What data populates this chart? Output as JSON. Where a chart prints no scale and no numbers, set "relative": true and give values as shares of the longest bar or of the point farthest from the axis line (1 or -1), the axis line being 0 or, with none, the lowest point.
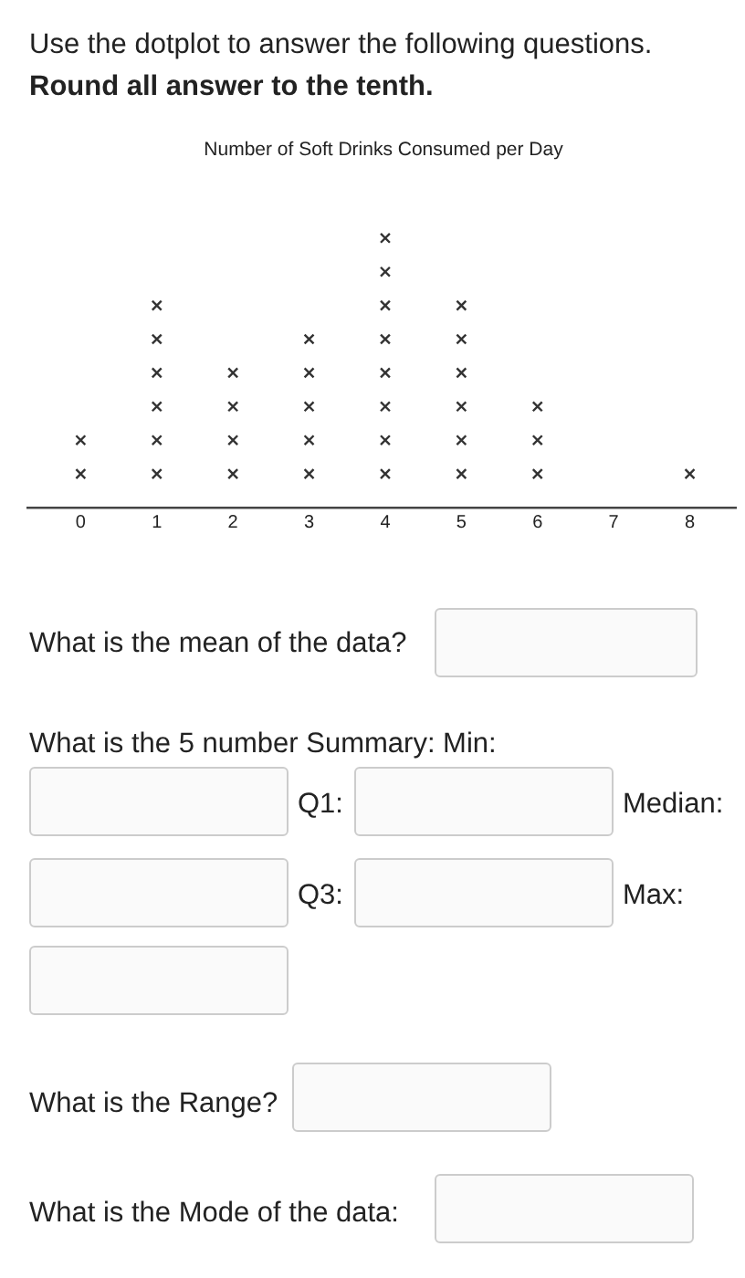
{
  "chart_data": {
    "type": "scatter",
    "title": "Number of Soft Drinks Consumed per Day",
    "x": [
      0,
      0,
      1,
      1,
      1,
      1,
      1,
      1,
      2,
      2,
      2,
      2,
      3,
      3,
      3,
      3,
      3,
      4,
      4,
      4,
      4,
      4,
      4,
      4,
      4,
      5,
      5,
      5,
      5,
      5,
      5,
      6,
      6,
      6,
      8
    ],
    "values": [
      0.125,
      0.25,
      0.125,
      0.25,
      0.375,
      0.5,
      0.625,
      0.75,
      0.125,
      0.25,
      0.375,
      0.5,
      0.125,
      0.25,
      0.375,
      0.5,
      0.625,
      0.125,
      0.25,
      0.375,
      0.5,
      0.625,
      0.75,
      0.875,
      1,
      0.125,
      0.25,
      0.375,
      0.5,
      0.625,
      0.75,
      0.125,
      0.25,
      0.375,
      0.125
    ],
    "color": "#333333",
    "relative": true,
    "marker": "cross",
    "grid": false,
    "legend": false,
    "xlim": [
      -0.7,
      8.6
    ],
    "xticks": [
      0,
      1,
      2,
      3,
      4,
      5,
      6,
      7,
      8
    ],
    "annotations": [
      "Use the dotplot to answer the following questions.",
      "Round all answer to the tenth.",
      "What is the mean of the data?",
      "What is the 5 number Summary: Min:",
      "Q1:",
      "Median:",
      "Q3:",
      "Max:",
      "What is the Range?",
      "What is the Mode of the data:"
    ]
  }
}
